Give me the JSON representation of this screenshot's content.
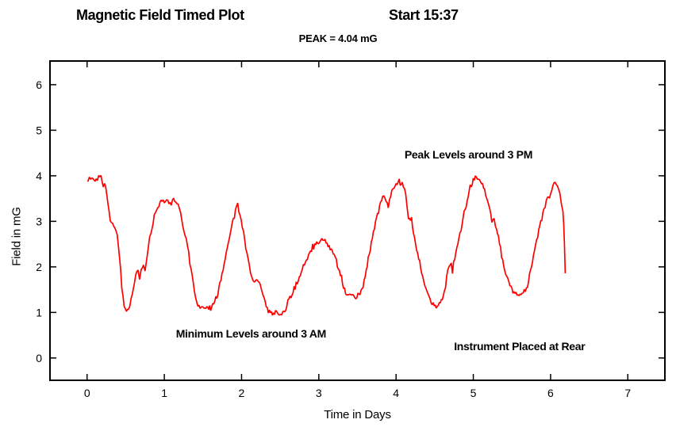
{
  "header": {
    "title": "Magnetic Field Timed Plot",
    "start": "Start 15:37",
    "peak": "PEAK = 4.04 mG"
  },
  "chart_data": {
    "type": "line",
    "title": "Magnetic Field Timed Plot",
    "start_time_label": "Start 15:37",
    "peak_label": "PEAK = 4.04 mG",
    "peak_value_mG": 4.04,
    "xlabel": "Time in Days",
    "ylabel": "Field in mG",
    "xlim": [
      -0.48,
      7.48
    ],
    "ylim": [
      -0.49,
      6.52
    ],
    "xticks": [
      0,
      1,
      2,
      3,
      4,
      5,
      6,
      7
    ],
    "yticks": [
      0,
      1,
      2,
      3,
      4,
      5,
      6
    ],
    "grid": false,
    "legend": "none",
    "line_color": "#ff0000",
    "axis_color": "#000000",
    "background": "#ffffff",
    "noise_amplitude_mG": 0.055,
    "annotations": [
      {
        "text": "Peak Levels around 3 PM",
        "x": 4.11,
        "y": 4.45,
        "align": "start"
      },
      {
        "text": "Minimum Levels around 3 AM",
        "x": 1.15,
        "y": 0.52,
        "align": "start"
      },
      {
        "text": "Instrument Placed at Rear",
        "x": 4.75,
        "y": 0.24,
        "align": "start"
      }
    ],
    "series": [
      {
        "name": "magnetic_field_mG",
        "points": [
          [
            0.01,
            3.9
          ],
          [
            0.03,
            3.95
          ],
          [
            0.06,
            3.9
          ],
          [
            0.09,
            3.94
          ],
          [
            0.12,
            3.89
          ],
          [
            0.15,
            3.93
          ],
          [
            0.18,
            3.91
          ],
          [
            0.21,
            3.88
          ],
          [
            0.24,
            3.75
          ],
          [
            0.27,
            3.4
          ],
          [
            0.3,
            3.05
          ],
          [
            0.33,
            2.95
          ],
          [
            0.36,
            2.9
          ],
          [
            0.39,
            2.7
          ],
          [
            0.42,
            2.25
          ],
          [
            0.45,
            1.6
          ],
          [
            0.48,
            1.15
          ],
          [
            0.51,
            1.05
          ],
          [
            0.54,
            1.08
          ],
          [
            0.57,
            1.25
          ],
          [
            0.6,
            1.55
          ],
          [
            0.63,
            1.8
          ],
          [
            0.66,
            1.95
          ],
          [
            0.68,
            1.76
          ],
          [
            0.7,
            1.9
          ],
          [
            0.73,
            2.05
          ],
          [
            0.75,
            1.96
          ],
          [
            0.78,
            2.3
          ],
          [
            0.81,
            2.65
          ],
          [
            0.84,
            2.9
          ],
          [
            0.87,
            3.1
          ],
          [
            0.9,
            3.25
          ],
          [
            0.93,
            3.4
          ],
          [
            0.97,
            3.45
          ],
          [
            1.0,
            3.42
          ],
          [
            1.03,
            3.5
          ],
          [
            1.06,
            3.44
          ],
          [
            1.09,
            3.4
          ],
          [
            1.12,
            3.5
          ],
          [
            1.15,
            3.44
          ],
          [
            1.18,
            3.35
          ],
          [
            1.21,
            3.18
          ],
          [
            1.24,
            2.95
          ],
          [
            1.27,
            2.7
          ],
          [
            1.3,
            2.45
          ],
          [
            1.33,
            2.12
          ],
          [
            1.36,
            1.82
          ],
          [
            1.39,
            1.5
          ],
          [
            1.42,
            1.22
          ],
          [
            1.45,
            1.12
          ],
          [
            1.5,
            1.1
          ],
          [
            1.55,
            1.15
          ],
          [
            1.6,
            1.1
          ],
          [
            1.64,
            1.2
          ],
          [
            1.68,
            1.35
          ],
          [
            1.72,
            1.6
          ],
          [
            1.76,
            1.95
          ],
          [
            1.8,
            2.3
          ],
          [
            1.84,
            2.65
          ],
          [
            1.88,
            2.95
          ],
          [
            1.92,
            3.2
          ],
          [
            1.95,
            3.35
          ],
          [
            1.98,
            3.15
          ],
          [
            2.01,
            2.88
          ],
          [
            2.04,
            2.58
          ],
          [
            2.07,
            2.28
          ],
          [
            2.1,
            2.02
          ],
          [
            2.13,
            1.8
          ],
          [
            2.16,
            1.72
          ],
          [
            2.2,
            1.68
          ],
          [
            2.24,
            1.6
          ],
          [
            2.28,
            1.38
          ],
          [
            2.32,
            1.12
          ],
          [
            2.36,
            1.0
          ],
          [
            2.4,
            0.95
          ],
          [
            2.44,
            1.0
          ],
          [
            2.48,
            0.96
          ],
          [
            2.52,
            0.95
          ],
          [
            2.56,
            1.05
          ],
          [
            2.6,
            1.26
          ],
          [
            2.64,
            1.3
          ],
          [
            2.68,
            1.5
          ],
          [
            2.72,
            1.65
          ],
          [
            2.76,
            1.85
          ],
          [
            2.8,
            2.0
          ],
          [
            2.84,
            2.15
          ],
          [
            2.88,
            2.3
          ],
          [
            2.92,
            2.4
          ],
          [
            2.96,
            2.5
          ],
          [
            3.0,
            2.55
          ],
          [
            3.04,
            2.62
          ],
          [
            3.08,
            2.57
          ],
          [
            3.12,
            2.5
          ],
          [
            3.16,
            2.38
          ],
          [
            3.2,
            2.24
          ],
          [
            3.24,
            2.04
          ],
          [
            3.28,
            1.84
          ],
          [
            3.32,
            1.58
          ],
          [
            3.36,
            1.42
          ],
          [
            3.4,
            1.35
          ],
          [
            3.44,
            1.4
          ],
          [
            3.48,
            1.34
          ],
          [
            3.52,
            1.38
          ],
          [
            3.56,
            1.5
          ],
          [
            3.6,
            1.8
          ],
          [
            3.64,
            2.15
          ],
          [
            3.68,
            2.5
          ],
          [
            3.72,
            2.85
          ],
          [
            3.76,
            3.15
          ],
          [
            3.8,
            3.4
          ],
          [
            3.84,
            3.58
          ],
          [
            3.87,
            3.48
          ],
          [
            3.9,
            3.33
          ],
          [
            3.93,
            3.55
          ],
          [
            3.96,
            3.75
          ],
          [
            4.0,
            3.85
          ],
          [
            4.04,
            3.88
          ],
          [
            4.08,
            3.82
          ],
          [
            4.11,
            3.7
          ],
          [
            4.14,
            3.42
          ],
          [
            4.16,
            3.08
          ],
          [
            4.2,
            3.0
          ],
          [
            4.24,
            2.62
          ],
          [
            4.28,
            2.28
          ],
          [
            4.32,
            1.98
          ],
          [
            4.36,
            1.68
          ],
          [
            4.4,
            1.45
          ],
          [
            4.44,
            1.28
          ],
          [
            4.48,
            1.18
          ],
          [
            4.52,
            1.14
          ],
          [
            4.56,
            1.18
          ],
          [
            4.6,
            1.25
          ],
          [
            4.64,
            1.6
          ],
          [
            4.67,
            1.95
          ],
          [
            4.7,
            2.08
          ],
          [
            4.73,
            2.0
          ],
          [
            4.76,
            2.2
          ],
          [
            4.8,
            2.5
          ],
          [
            4.84,
            2.85
          ],
          [
            4.88,
            3.15
          ],
          [
            4.92,
            3.45
          ],
          [
            4.96,
            3.75
          ],
          [
            5.0,
            3.95
          ],
          [
            5.04,
            4.0
          ],
          [
            5.08,
            3.9
          ],
          [
            5.12,
            3.8
          ],
          [
            5.16,
            3.58
          ],
          [
            5.2,
            3.34
          ],
          [
            5.24,
            3.04
          ],
          [
            5.27,
            3.1
          ],
          [
            5.3,
            2.85
          ],
          [
            5.34,
            2.5
          ],
          [
            5.38,
            2.15
          ],
          [
            5.42,
            1.9
          ],
          [
            5.46,
            1.65
          ],
          [
            5.5,
            1.5
          ],
          [
            5.54,
            1.4
          ],
          [
            5.58,
            1.34
          ],
          [
            5.62,
            1.37
          ],
          [
            5.66,
            1.44
          ],
          [
            5.7,
            1.6
          ],
          [
            5.74,
            1.9
          ],
          [
            5.78,
            2.25
          ],
          [
            5.82,
            2.6
          ],
          [
            5.86,
            2.9
          ],
          [
            5.9,
            3.15
          ],
          [
            5.93,
            3.35
          ],
          [
            5.96,
            3.5
          ],
          [
            6.0,
            3.6
          ],
          [
            6.03,
            3.8
          ],
          [
            6.06,
            3.88
          ],
          [
            6.09,
            3.82
          ],
          [
            6.12,
            3.65
          ],
          [
            6.14,
            3.4
          ],
          [
            6.16,
            3.2
          ],
          [
            6.17,
            3.0
          ],
          [
            6.18,
            2.5
          ],
          [
            6.19,
            1.9
          ]
        ]
      }
    ]
  }
}
